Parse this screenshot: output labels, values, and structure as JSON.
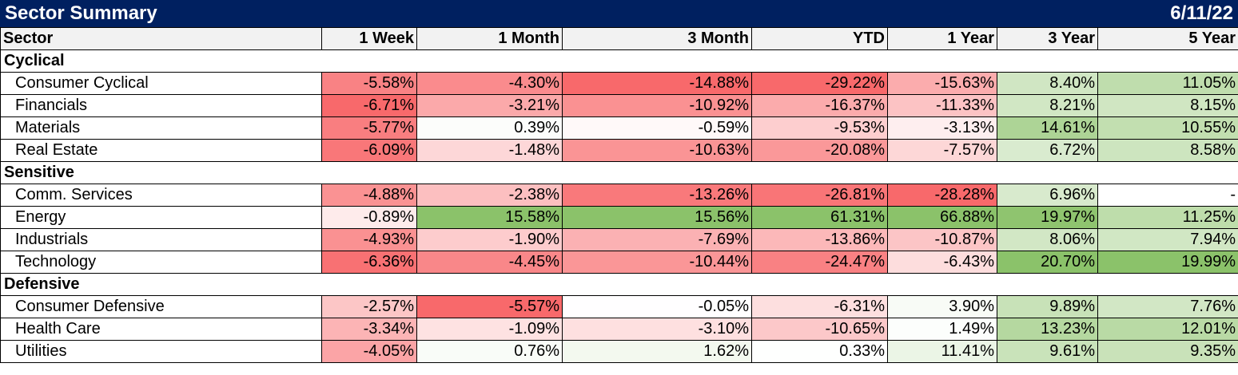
{
  "header": {
    "title": "Sector Summary",
    "date": "6/11/22"
  },
  "columns": [
    "Sector",
    "1 Week",
    "1 Month",
    "3 Month",
    "YTD",
    "1 Year",
    "3 Year",
    "5 Year"
  ],
  "colors": {
    "header_bg": "#002060",
    "neg_max": "#f8696b",
    "pos_max": "#8bc26a",
    "neutral": "#ffffff"
  },
  "chart_data": {
    "type": "table",
    "title": "Sector Summary",
    "date": "6/11/22",
    "columns": [
      "1 Week",
      "1 Month",
      "3 Month",
      "YTD",
      "1 Year",
      "3 Year",
      "5 Year"
    ],
    "groups": [
      {
        "name": "Cyclical",
        "rows": [
          {
            "sector": "Consumer Cyclical",
            "values": [
              "-5.58%",
              "-4.30%",
              "-14.88%",
              "-29.22%",
              "-15.63%",
              "8.40%",
              "11.05%"
            ]
          },
          {
            "sector": "Financials",
            "values": [
              "-6.71%",
              "-3.21%",
              "-10.92%",
              "-16.37%",
              "-11.33%",
              "8.21%",
              "8.15%"
            ]
          },
          {
            "sector": "Materials",
            "values": [
              "-5.77%",
              "0.39%",
              "-0.59%",
              "-9.53%",
              "-3.13%",
              "14.61%",
              "10.55%"
            ]
          },
          {
            "sector": "Real Estate",
            "values": [
              "-6.09%",
              "-1.48%",
              "-10.63%",
              "-20.08%",
              "-7.57%",
              "6.72%",
              "8.58%"
            ]
          }
        ]
      },
      {
        "name": "Sensitive",
        "rows": [
          {
            "sector": "Comm. Services",
            "values": [
              "-4.88%",
              "-2.38%",
              "-13.26%",
              "-26.81%",
              "-28.28%",
              "6.96%",
              "-"
            ]
          },
          {
            "sector": "Energy",
            "values": [
              "-0.89%",
              "15.58%",
              "15.56%",
              "61.31%",
              "66.88%",
              "19.97%",
              "11.25%"
            ]
          },
          {
            "sector": "Industrials",
            "values": [
              "-4.93%",
              "-1.90%",
              "-7.69%",
              "-13.86%",
              "-10.87%",
              "8.06%",
              "7.94%"
            ]
          },
          {
            "sector": "Technology",
            "values": [
              "-6.36%",
              "-4.45%",
              "-10.44%",
              "-24.47%",
              "-6.43%",
              "20.70%",
              "19.99%"
            ]
          }
        ]
      },
      {
        "name": "Defensive",
        "rows": [
          {
            "sector": "Consumer Defensive",
            "values": [
              "-2.57%",
              "-5.57%",
              "-0.05%",
              "-6.31%",
              "3.90%",
              "9.89%",
              "7.76%"
            ]
          },
          {
            "sector": "Health Care",
            "values": [
              "-3.34%",
              "-1.09%",
              "-3.10%",
              "-10.65%",
              "1.49%",
              "13.23%",
              "12.01%"
            ]
          },
          {
            "sector": "Utilities",
            "values": [
              "-4.05%",
              "0.76%",
              "1.62%",
              "0.33%",
              "11.41%",
              "9.61%",
              "9.35%"
            ]
          }
        ]
      }
    ]
  }
}
